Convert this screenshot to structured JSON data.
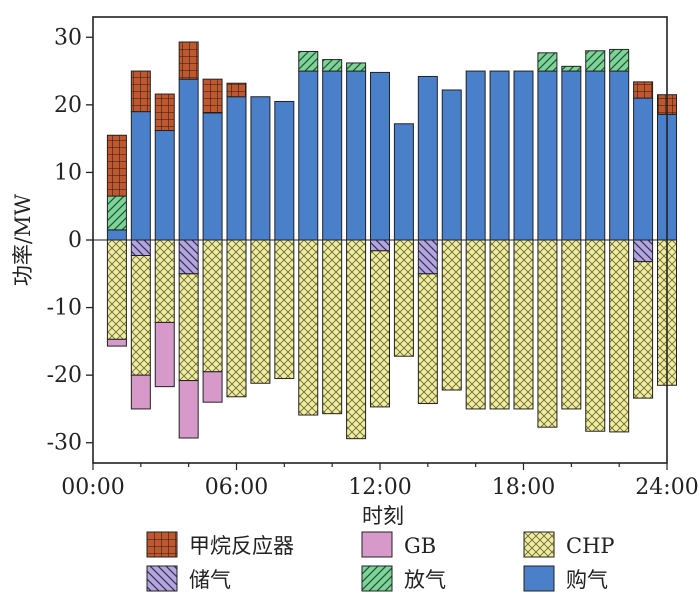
{
  "chart_data": {
    "type": "bar",
    "stacked": true,
    "xlabel": "时刻",
    "ylabel": "功率/MW",
    "ylim": [
      -33,
      33
    ],
    "yticks": [
      -30,
      -20,
      -10,
      0,
      10,
      20,
      30
    ],
    "xticks": [
      "00:00",
      "06:00",
      "12:00",
      "18:00",
      "24:00"
    ],
    "hours": [
      1,
      2,
      3,
      4,
      5,
      6,
      7,
      8,
      9,
      10,
      11,
      12,
      13,
      14,
      15,
      16,
      17,
      18,
      19,
      20,
      21,
      22,
      23,
      24
    ],
    "x_range_hours": [
      0,
      24
    ],
    "grid": false,
    "legend_position": "bottom",
    "series": [
      {
        "name": "购气",
        "key": "buy",
        "color": "#4a7fc9",
        "values": [
          1.5,
          19,
          16.2,
          23.8,
          18.8,
          21.2,
          21.2,
          20.5,
          25,
          25,
          25,
          24.8,
          17.2,
          24.2,
          22.2,
          25,
          25,
          25,
          25,
          25,
          25,
          25,
          21,
          18.6
        ]
      },
      {
        "name": "放气",
        "key": "release",
        "color": "#7fd39a",
        "values": [
          5,
          0,
          0,
          0,
          0,
          0,
          0,
          0,
          2.9,
          1.7,
          1.2,
          0,
          0,
          0,
          0,
          0,
          0,
          0,
          2.7,
          0.7,
          3,
          3.2,
          0,
          0
        ]
      },
      {
        "name": "甲烷反应器",
        "key": "methane",
        "color": "#c0582f",
        "values": [
          9,
          6,
          5.4,
          5.5,
          5,
          2,
          0,
          0,
          0,
          0,
          0,
          0,
          0,
          0,
          0,
          0,
          0,
          0,
          0,
          0,
          0,
          0,
          2.4,
          2.9
        ]
      },
      {
        "name": "储气",
        "key": "storage",
        "color": "#b3a6d9",
        "values": [
          0,
          -2.3,
          0,
          -5,
          0,
          0,
          0,
          0,
          0,
          0,
          0,
          -1.6,
          0,
          -5,
          0,
          0,
          0,
          0,
          0,
          0,
          0,
          0,
          -3.2,
          0
        ]
      },
      {
        "name": "CHP",
        "key": "chp",
        "color": "#f0ee9e",
        "values": [
          -14.7,
          -17.7,
          -12.2,
          -15.8,
          -19.5,
          -23.2,
          -21.2,
          -20.5,
          -25.9,
          -25.7,
          -29.4,
          -23.1,
          -17.2,
          -19.2,
          -22.2,
          -25,
          -25,
          -25,
          -27.7,
          -25,
          -28.3,
          -28.4,
          -20.2,
          -21.5
        ]
      },
      {
        "name": "GB",
        "key": "gb",
        "color": "#d699c9",
        "values": [
          -1,
          -5,
          -9.5,
          -8.5,
          -4.5,
          0,
          0,
          0,
          0,
          0,
          0,
          0,
          0,
          0,
          0,
          0,
          0,
          0,
          0,
          0,
          0,
          0,
          0,
          0
        ]
      }
    ],
    "legend_order": [
      "methane",
      "gb",
      "chp",
      "storage",
      "release",
      "buy"
    ]
  }
}
